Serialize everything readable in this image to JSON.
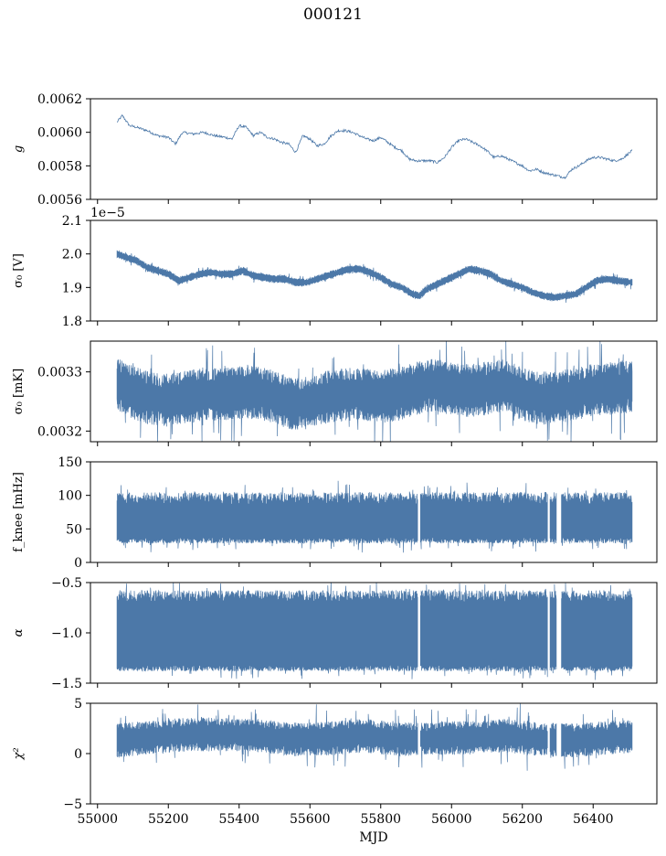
{
  "figure": {
    "title": "000121",
    "xlabel": "MJD",
    "line_color": "#4c78a8"
  },
  "chart_data": [
    {
      "type": "line",
      "panel": "g",
      "ylabel": "g",
      "ylim": [
        0.0056,
        0.0062
      ],
      "yticks": [
        0.0056,
        0.0058,
        0.006,
        0.0062
      ],
      "ytick_labels": [
        "0.0056",
        "0.0058",
        "0.0060",
        "0.0062"
      ],
      "xlim": [
        54980,
        56580
      ],
      "series": [
        {
          "x": [
            55055,
            55070,
            55090,
            55110,
            55140,
            55170,
            55200,
            55220,
            55240,
            55270,
            55300,
            55330,
            55360,
            55380,
            55400,
            55420,
            55440,
            55460,
            55480,
            55500,
            55520,
            55540,
            55560,
            55580,
            55600,
            55620,
            55640,
            55660,
            55680,
            55700,
            55720,
            55740,
            55760,
            55780,
            55800,
            55820,
            55840,
            55860,
            55880,
            55900,
            55920,
            55940,
            55960,
            55980,
            56000,
            56020,
            56040,
            56060,
            56080,
            56100,
            56120,
            56140,
            56160,
            56180,
            56200,
            56220,
            56240,
            56260,
            56280,
            56300,
            56320,
            56340,
            56360,
            56380,
            56400,
            56420,
            56440,
            56460,
            56480,
            56510
          ],
          "y": [
            0.00606,
            0.0061,
            0.00604,
            0.00603,
            0.00601,
            0.00598,
            0.00597,
            0.00593,
            0.006,
            0.00599,
            0.006,
            0.00598,
            0.00597,
            0.00596,
            0.00604,
            0.00603,
            0.00598,
            0.006,
            0.00597,
            0.00596,
            0.00594,
            0.00593,
            0.00588,
            0.00598,
            0.00596,
            0.00592,
            0.00593,
            0.00598,
            0.00601,
            0.00601,
            0.006,
            0.00598,
            0.00596,
            0.00595,
            0.00597,
            0.00594,
            0.00591,
            0.00589,
            0.00584,
            0.00583,
            0.00583,
            0.00583,
            0.00582,
            0.00585,
            0.00591,
            0.00595,
            0.00596,
            0.00594,
            0.00592,
            0.00589,
            0.00585,
            0.00586,
            0.00584,
            0.00582,
            0.0058,
            0.00577,
            0.00578,
            0.00576,
            0.00575,
            0.00574,
            0.00573,
            0.00578,
            0.0058,
            0.00583,
            0.00585,
            0.00585,
            0.00584,
            0.00583,
            0.00584,
            0.00589
          ]
        }
      ]
    },
    {
      "type": "line",
      "panel": "sigma0_V",
      "ylabel": "σ₀ [V]",
      "offset_text": "1e−5",
      "ylim": [
        1.8,
        2.1
      ],
      "yticks": [
        1.8,
        1.9,
        2.0,
        2.1
      ],
      "ytick_labels": [
        "1.8",
        "1.9",
        "2.0",
        "2.1"
      ],
      "xlim": [
        54980,
        56580
      ],
      "band_halfwidth": 0.008,
      "series": [
        {
          "x": [
            55055,
            55080,
            55110,
            55140,
            55170,
            55200,
            55230,
            55260,
            55290,
            55320,
            55350,
            55380,
            55410,
            55440,
            55470,
            55500,
            55530,
            55560,
            55590,
            55620,
            55650,
            55680,
            55710,
            55740,
            55770,
            55800,
            55830,
            55860,
            55890,
            55910,
            55930,
            55960,
            55990,
            56020,
            56050,
            56080,
            56110,
            56140,
            56170,
            56200,
            56230,
            56260,
            56290,
            56320,
            56350,
            56380,
            56410,
            56440,
            56470,
            56510
          ],
          "y": [
            2.0,
            1.99,
            1.98,
            1.96,
            1.95,
            1.94,
            1.92,
            1.93,
            1.94,
            1.945,
            1.94,
            1.94,
            1.95,
            1.935,
            1.93,
            1.925,
            1.925,
            1.915,
            1.915,
            1.925,
            1.935,
            1.945,
            1.955,
            1.955,
            1.945,
            1.93,
            1.91,
            1.9,
            1.88,
            1.875,
            1.895,
            1.91,
            1.925,
            1.94,
            1.955,
            1.95,
            1.94,
            1.92,
            1.91,
            1.9,
            1.885,
            1.875,
            1.87,
            1.875,
            1.88,
            1.9,
            1.92,
            1.925,
            1.92,
            1.915
          ]
        }
      ]
    },
    {
      "type": "line",
      "panel": "sigma0_mK",
      "ylabel": "σ₀ [mK]",
      "ylim": [
        0.003182,
        0.003352
      ],
      "yticks": [
        0.0032,
        0.0033
      ],
      "ytick_labels": [
        "0.0032",
        "0.0033"
      ],
      "xlim": [
        54980,
        56580
      ],
      "band_halfwidth": 3.2e-05,
      "series": [
        {
          "x": [
            55055,
            55100,
            55150,
            55200,
            55250,
            55300,
            55350,
            55400,
            55450,
            55500,
            55550,
            55600,
            55650,
            55700,
            55750,
            55800,
            55850,
            55900,
            55950,
            56000,
            56050,
            56100,
            56150,
            56200,
            56250,
            56300,
            56350,
            56400,
            56450,
            56510
          ],
          "y": [
            0.00328,
            0.003265,
            0.003255,
            0.003252,
            0.003258,
            0.003262,
            0.003262,
            0.003265,
            0.003265,
            0.003258,
            0.003245,
            0.003248,
            0.003258,
            0.003262,
            0.003262,
            0.003258,
            0.003262,
            0.003272,
            0.003278,
            0.003272,
            0.003268,
            0.003272,
            0.003278,
            0.003262,
            0.003255,
            0.003258,
            0.003262,
            0.00327,
            0.003272,
            0.003275
          ]
        }
      ]
    },
    {
      "type": "line",
      "panel": "fknee",
      "ylabel": "f_knee [mHz]",
      "ylim": [
        0,
        150
      ],
      "yticks": [
        0,
        50,
        100,
        150
      ],
      "ytick_labels": [
        "0",
        "50",
        "100",
        "150"
      ],
      "xlim": [
        54980,
        56580
      ],
      "band": [
        33,
        92
      ],
      "gaps": [
        [
          55905,
          55912
        ],
        [
          56272,
          56278
        ],
        [
          56296,
          56310
        ]
      ],
      "series": [
        {
          "x": [
            55055,
            56510
          ],
          "y": [
            62,
            62
          ]
        }
      ]
    },
    {
      "type": "line",
      "panel": "alpha",
      "ylabel": "α",
      "ylim": [
        -1.5,
        -0.5
      ],
      "yticks": [
        -1.5,
        -1.0,
        -0.5
      ],
      "ytick_labels": [
        "−1.5",
        "−1.0",
        "−0.5"
      ],
      "xlim": [
        54980,
        56580
      ],
      "band": [
        -1.35,
        -0.66
      ],
      "gaps": [
        [
          55905,
          55912
        ],
        [
          56272,
          56278
        ],
        [
          56296,
          56310
        ]
      ],
      "series": [
        {
          "x": [
            55055,
            56510
          ],
          "y": [
            -1.0,
            -1.0
          ]
        }
      ]
    },
    {
      "type": "line",
      "panel": "chi2",
      "ylabel": "χ²",
      "ylim": [
        -5,
        5
      ],
      "yticks": [
        -5,
        0,
        5
      ],
      "ytick_labels": [
        "−5",
        "0",
        "5"
      ],
      "xlim": [
        54980,
        56580
      ],
      "band_halfwidth": 1.2,
      "gaps": [
        [
          55905,
          55912
        ],
        [
          56272,
          56278
        ],
        [
          56296,
          56310
        ]
      ],
      "series": [
        {
          "x": [
            55055,
            55150,
            55250,
            55350,
            55450,
            55550,
            55650,
            55750,
            55850,
            55950,
            56050,
            56150,
            56250,
            56350,
            56450,
            56510
          ],
          "y": [
            1.3,
            1.6,
            1.9,
            1.9,
            1.8,
            1.4,
            1.5,
            1.8,
            1.4,
            1.5,
            1.6,
            1.8,
            1.4,
            1.3,
            1.6,
            1.7
          ]
        }
      ],
      "xticks": [
        55000,
        55200,
        55400,
        55600,
        55800,
        56000,
        56200,
        56400
      ],
      "xtick_labels": [
        "55000",
        "55200",
        "55400",
        "55600",
        "55800",
        "56000",
        "56200",
        "56400"
      ]
    }
  ]
}
